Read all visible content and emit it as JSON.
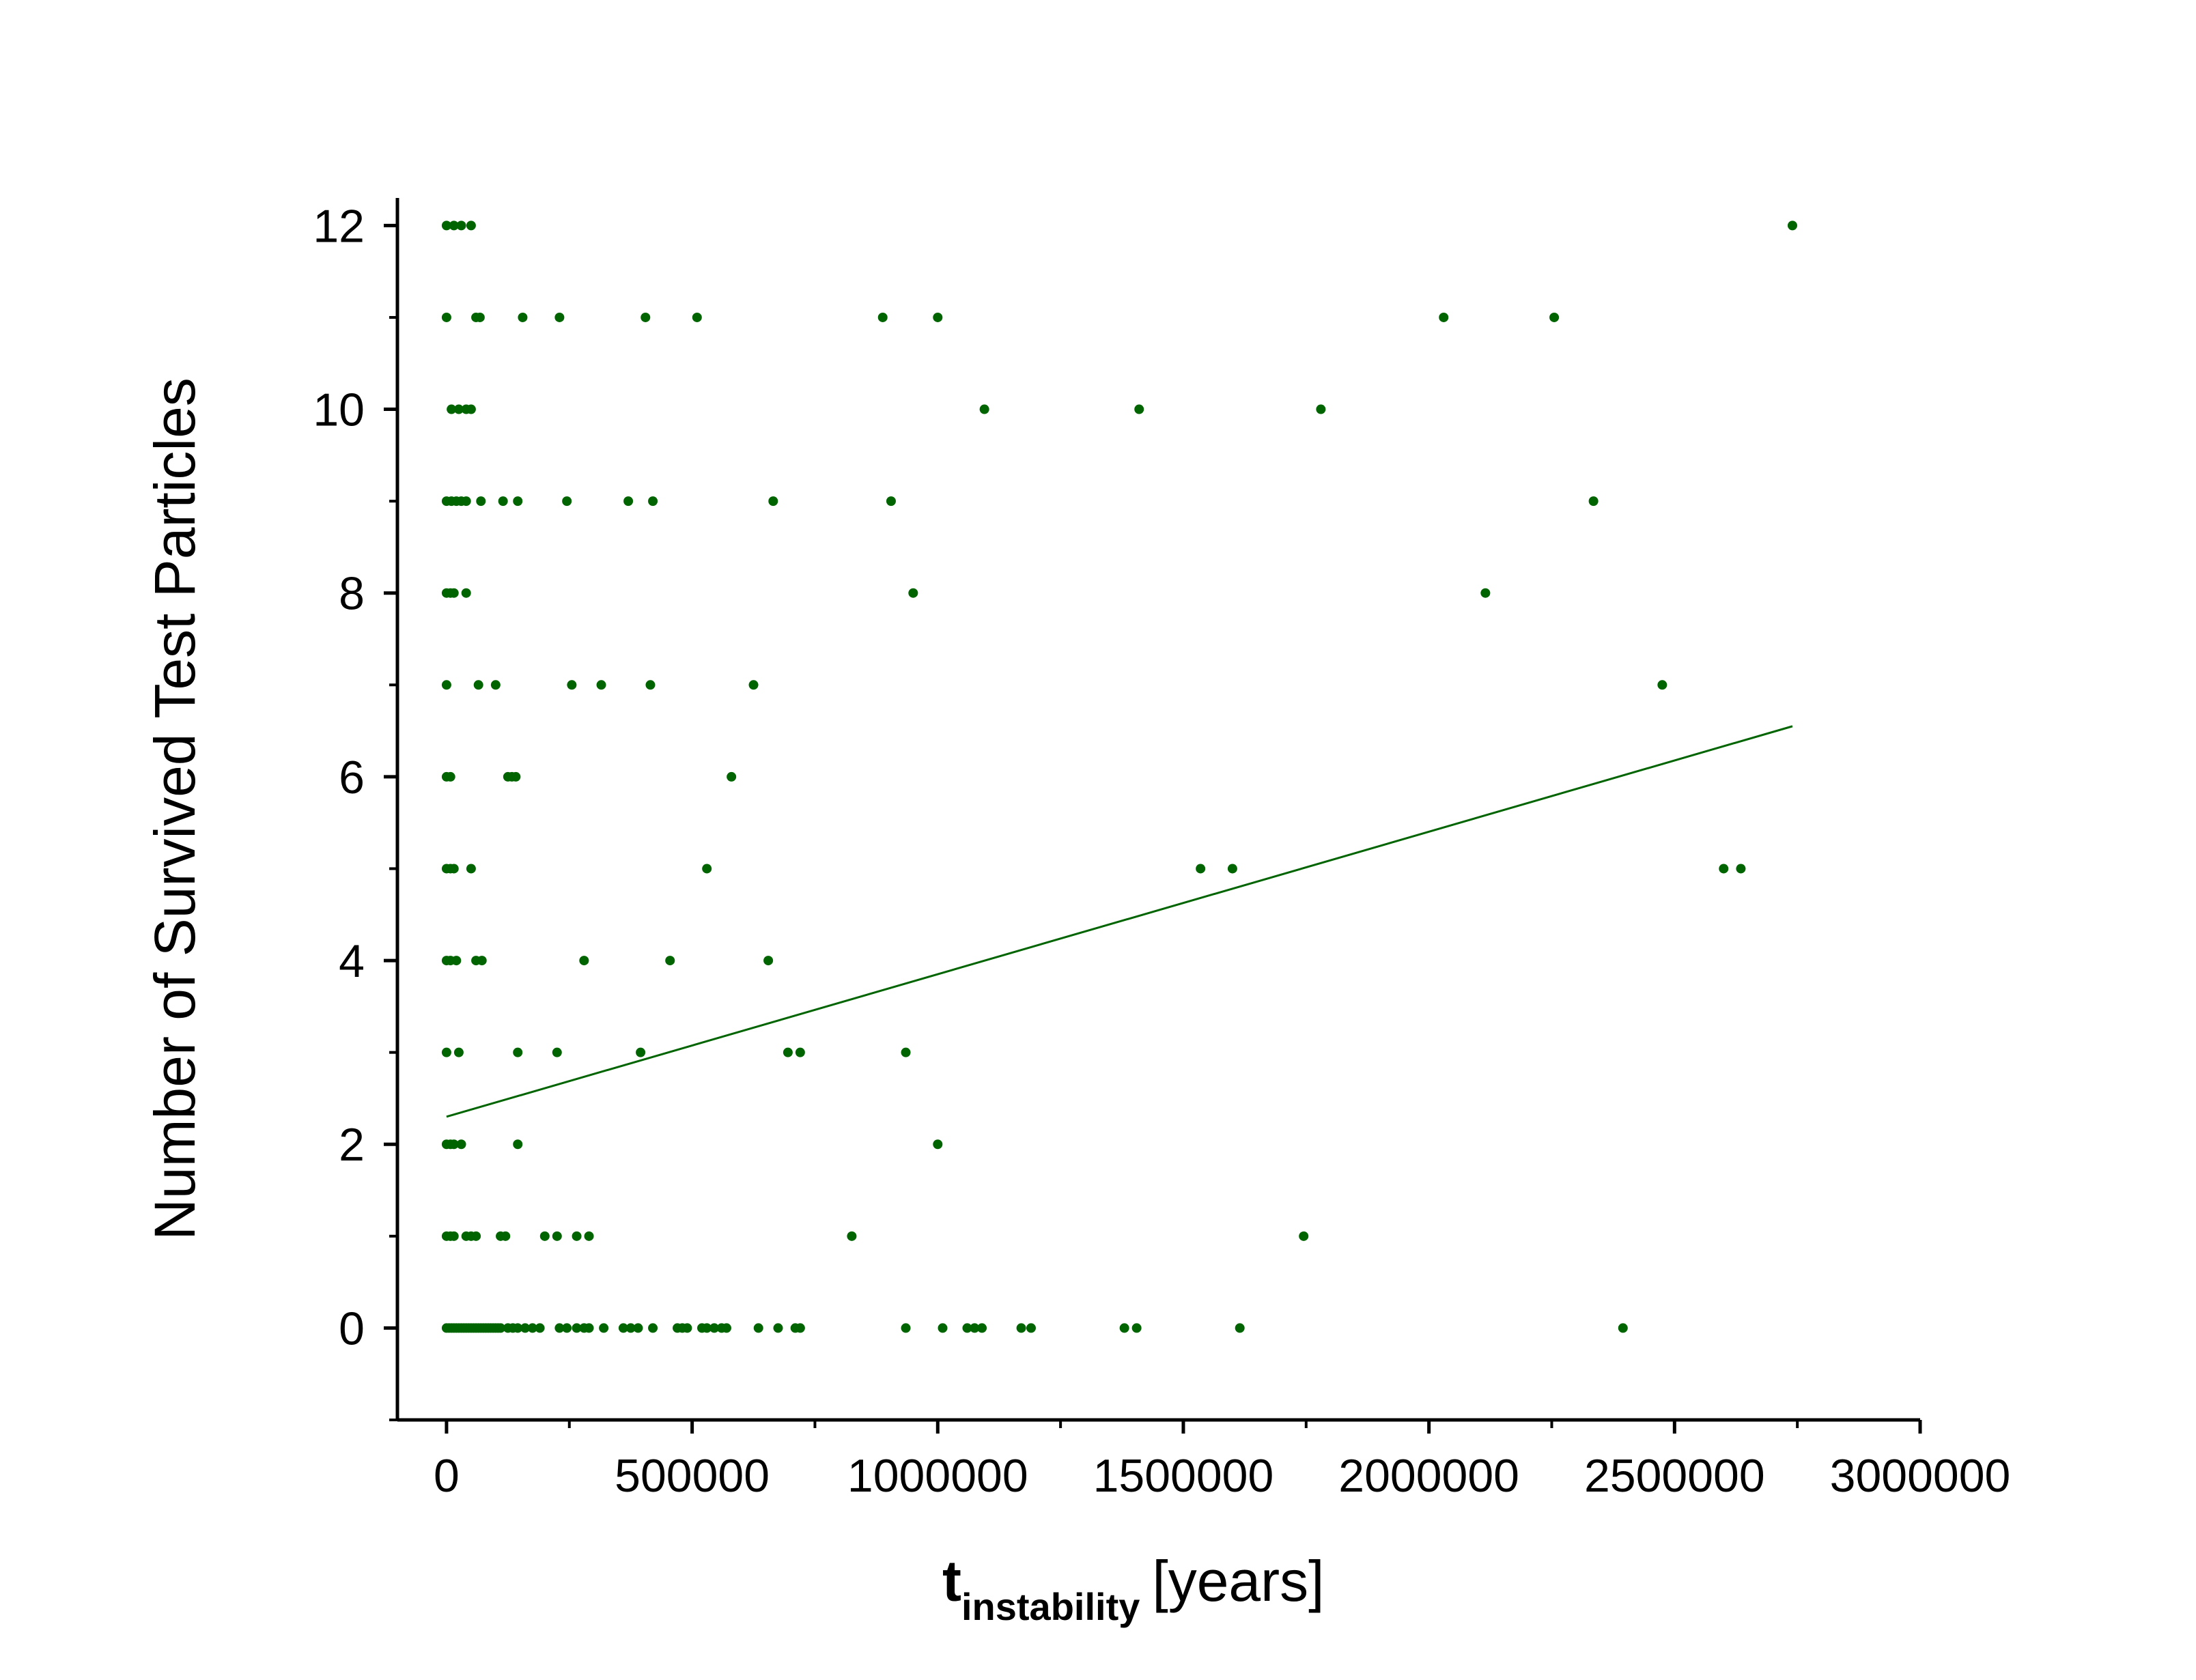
{
  "chart_data": {
    "type": "scatter",
    "title": "",
    "xlabel": {
      "main": "t",
      "subscript": "instability",
      "suffix": "[years]"
    },
    "ylabel": "Number of Survived Test Particles",
    "xlim": [
      -100000,
      3000000
    ],
    "ylim": [
      -1,
      12.3
    ],
    "x_ticks": [
      0,
      500000,
      1000000,
      1500000,
      2000000,
      2500000,
      3000000
    ],
    "x_tick_labels": [
      "0",
      "500000",
      "1000000",
      "1500000",
      "2000000",
      "2500000",
      "3000000"
    ],
    "y_ticks": [
      0,
      2,
      4,
      6,
      8,
      10,
      12
    ],
    "y_tick_labels": [
      "0",
      "2",
      "4",
      "6",
      "8",
      "10",
      "12"
    ],
    "grid": false,
    "legend": "none",
    "colors": {
      "points": "#006400",
      "fit_line": "#006400",
      "axes": "#000000"
    },
    "series": [
      {
        "kind": "points",
        "points": [
          [
            0,
            12
          ],
          [
            15000,
            12
          ],
          [
            30000,
            12
          ],
          [
            50000,
            12
          ],
          [
            2740000,
            12
          ],
          [
            0,
            11
          ],
          [
            60000,
            11
          ],
          [
            68000,
            11
          ],
          [
            155000,
            11
          ],
          [
            230000,
            11
          ],
          [
            405000,
            11
          ],
          [
            510000,
            11
          ],
          [
            888000,
            11
          ],
          [
            1000000,
            11
          ],
          [
            2030000,
            11
          ],
          [
            2255000,
            11
          ],
          [
            10000,
            10
          ],
          [
            25000,
            10
          ],
          [
            40000,
            10
          ],
          [
            50000,
            10
          ],
          [
            1095000,
            10
          ],
          [
            1410000,
            10
          ],
          [
            1780000,
            10
          ],
          [
            0,
            9
          ],
          [
            10000,
            9
          ],
          [
            20000,
            9
          ],
          [
            30000,
            9
          ],
          [
            40000,
            9
          ],
          [
            70000,
            9
          ],
          [
            115000,
            9
          ],
          [
            145000,
            9
          ],
          [
            245000,
            9
          ],
          [
            370000,
            9
          ],
          [
            420000,
            9
          ],
          [
            665000,
            9
          ],
          [
            905000,
            9
          ],
          [
            2335000,
            9
          ],
          [
            0,
            8
          ],
          [
            8000,
            8
          ],
          [
            15000,
            8
          ],
          [
            40000,
            8
          ],
          [
            950000,
            8
          ],
          [
            2115000,
            8
          ],
          [
            0,
            7
          ],
          [
            65000,
            7
          ],
          [
            100000,
            7
          ],
          [
            255000,
            7
          ],
          [
            315000,
            7
          ],
          [
            415000,
            7
          ],
          [
            625000,
            7
          ],
          [
            2475000,
            7
          ],
          [
            0,
            6
          ],
          [
            8000,
            6
          ],
          [
            125000,
            6
          ],
          [
            133000,
            6
          ],
          [
            141000,
            6
          ],
          [
            580000,
            6
          ],
          [
            0,
            5
          ],
          [
            8000,
            5
          ],
          [
            15000,
            5
          ],
          [
            50000,
            5
          ],
          [
            530000,
            5
          ],
          [
            1535000,
            5
          ],
          [
            1600000,
            5
          ],
          [
            2600000,
            5
          ],
          [
            2635000,
            5
          ],
          [
            0,
            4
          ],
          [
            8000,
            4
          ],
          [
            20000,
            4
          ],
          [
            60000,
            4
          ],
          [
            72000,
            4
          ],
          [
            280000,
            4
          ],
          [
            455000,
            4
          ],
          [
            655000,
            4
          ],
          [
            0,
            3
          ],
          [
            25000,
            3
          ],
          [
            145000,
            3
          ],
          [
            225000,
            3
          ],
          [
            395000,
            3
          ],
          [
            695000,
            3
          ],
          [
            720000,
            3
          ],
          [
            935000,
            3
          ],
          [
            0,
            2
          ],
          [
            8000,
            2
          ],
          [
            15000,
            2
          ],
          [
            30000,
            2
          ],
          [
            145000,
            2
          ],
          [
            1000000,
            2
          ],
          [
            0,
            1
          ],
          [
            8000,
            1
          ],
          [
            15000,
            1
          ],
          [
            40000,
            1
          ],
          [
            50000,
            1
          ],
          [
            60000,
            1
          ],
          [
            110000,
            1
          ],
          [
            120000,
            1
          ],
          [
            200000,
            1
          ],
          [
            225000,
            1
          ],
          [
            265000,
            1
          ],
          [
            290000,
            1
          ],
          [
            825000,
            1
          ],
          [
            1745000,
            1
          ],
          [
            0,
            0
          ],
          [
            5000,
            0
          ],
          [
            10000,
            0
          ],
          [
            15000,
            0
          ],
          [
            20000,
            0
          ],
          [
            25000,
            0
          ],
          [
            30000,
            0
          ],
          [
            35000,
            0
          ],
          [
            40000,
            0
          ],
          [
            45000,
            0
          ],
          [
            50000,
            0
          ],
          [
            55000,
            0
          ],
          [
            60000,
            0
          ],
          [
            65000,
            0
          ],
          [
            70000,
            0
          ],
          [
            75000,
            0
          ],
          [
            80000,
            0
          ],
          [
            85000,
            0
          ],
          [
            90000,
            0
          ],
          [
            95000,
            0
          ],
          [
            100000,
            0
          ],
          [
            105000,
            0
          ],
          [
            110000,
            0
          ],
          [
            125000,
            0
          ],
          [
            135000,
            0
          ],
          [
            145000,
            0
          ],
          [
            160000,
            0
          ],
          [
            175000,
            0
          ],
          [
            190000,
            0
          ],
          [
            230000,
            0
          ],
          [
            245000,
            0
          ],
          [
            265000,
            0
          ],
          [
            280000,
            0
          ],
          [
            290000,
            0
          ],
          [
            320000,
            0
          ],
          [
            360000,
            0
          ],
          [
            375000,
            0
          ],
          [
            390000,
            0
          ],
          [
            420000,
            0
          ],
          [
            470000,
            0
          ],
          [
            480000,
            0
          ],
          [
            490000,
            0
          ],
          [
            520000,
            0
          ],
          [
            530000,
            0
          ],
          [
            545000,
            0
          ],
          [
            560000,
            0
          ],
          [
            570000,
            0
          ],
          [
            635000,
            0
          ],
          [
            675000,
            0
          ],
          [
            710000,
            0
          ],
          [
            720000,
            0
          ],
          [
            935000,
            0
          ],
          [
            1010000,
            0
          ],
          [
            1060000,
            0
          ],
          [
            1075000,
            0
          ],
          [
            1090000,
            0
          ],
          [
            1170000,
            0
          ],
          [
            1190000,
            0
          ],
          [
            1380000,
            0
          ],
          [
            1405000,
            0
          ],
          [
            1615000,
            0
          ],
          [
            2395000,
            0
          ]
        ]
      },
      {
        "kind": "fit_line",
        "points": [
          [
            0,
            2.3
          ],
          [
            2740000,
            6.55
          ]
        ]
      }
    ]
  }
}
